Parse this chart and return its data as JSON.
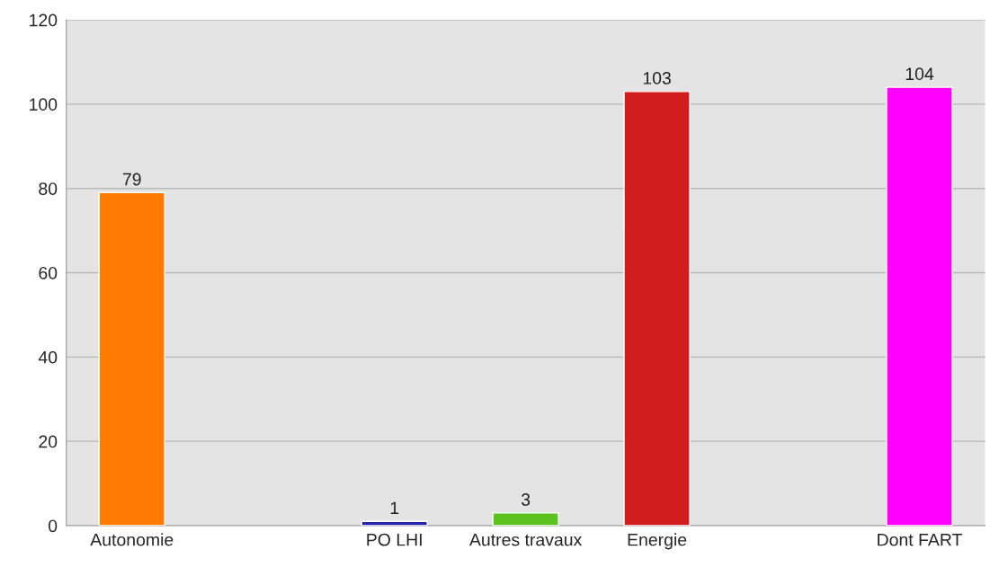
{
  "chart_data": {
    "type": "bar",
    "categories": [
      "Autonomie",
      null,
      "PO LHI",
      "Autres travaux",
      "Energie",
      null,
      "Dont FART"
    ],
    "values": [
      79,
      null,
      1,
      3,
      103,
      null,
      104
    ],
    "colors": [
      "#ff7a00",
      "#cccccc",
      "#2222aa",
      "#5cc21e",
      "#d01c1c",
      "#cccccc",
      "#ff00ff"
    ],
    "ylim": [
      0,
      120
    ],
    "yticks": [
      0,
      20,
      40,
      60,
      80,
      100,
      120
    ],
    "grid": "y",
    "data_labels": true
  }
}
